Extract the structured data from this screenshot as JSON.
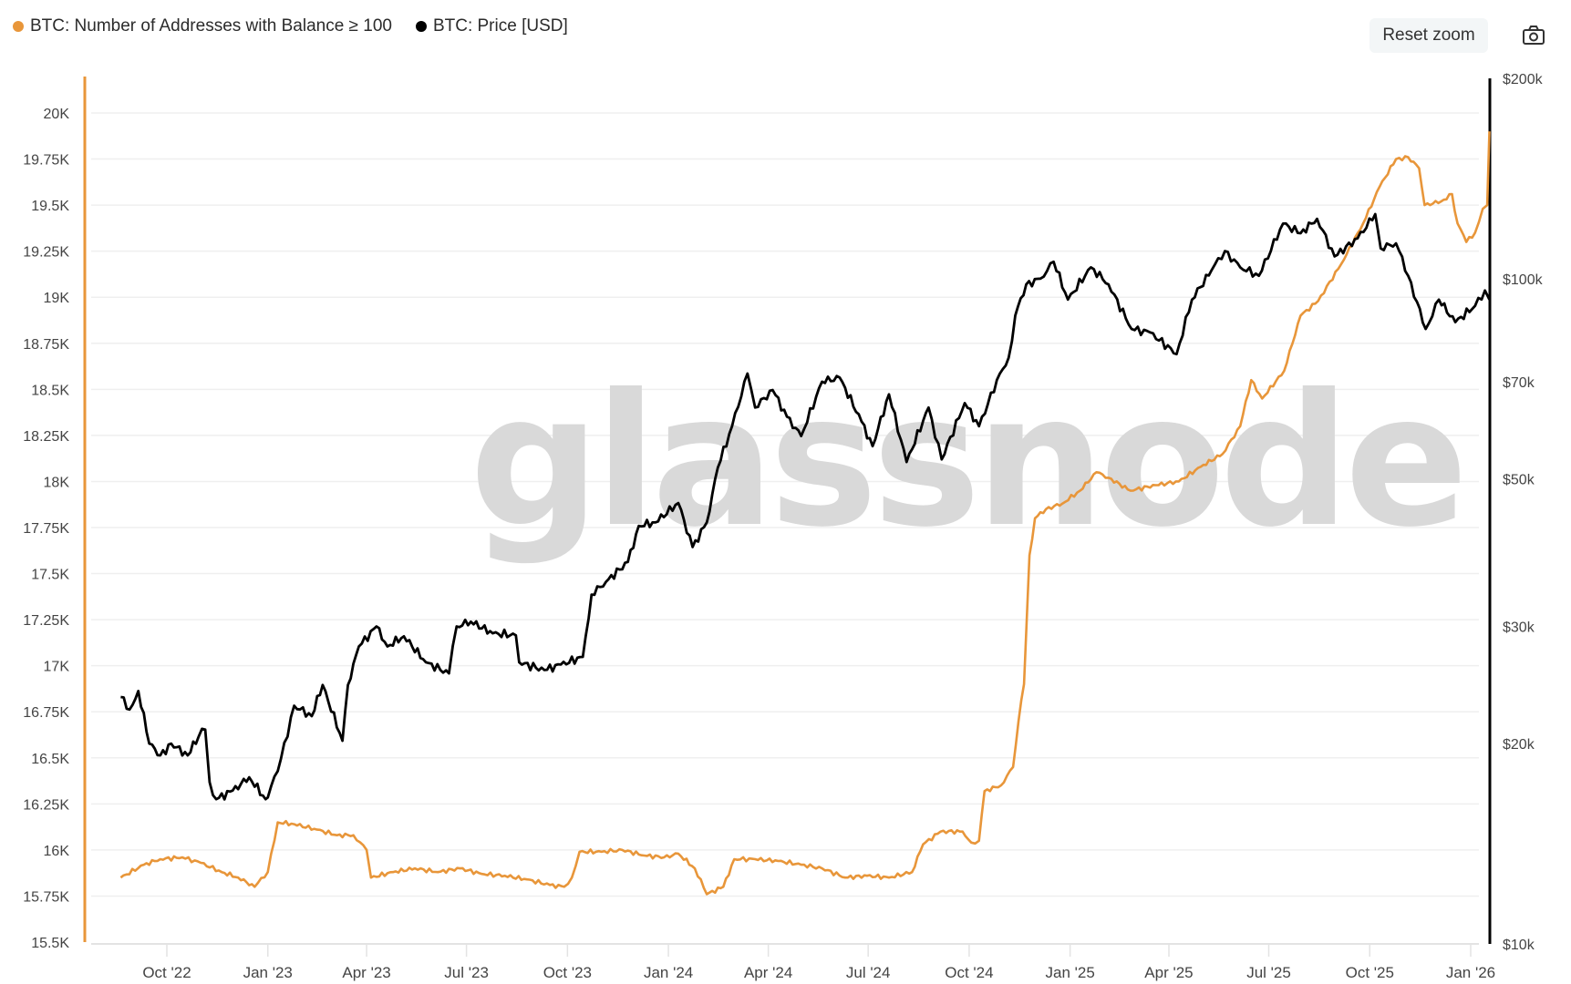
{
  "legend": [
    {
      "label": "BTC: Number of Addresses with Balance ≥ 100",
      "color": "#E8963A"
    },
    {
      "label": "BTC: Price [USD]",
      "color": "#000000"
    }
  ],
  "toolbar": {
    "reset_zoom_label": "Reset zoom",
    "screenshot_icon": "camera-icon"
  },
  "watermark": "glassnode",
  "chart_data": {
    "type": "line",
    "title": "",
    "xlabel": "",
    "ylabel": "",
    "y_left": {
      "label": "BTC: Number of Addresses with Balance ≥ 100",
      "range": [
        15500,
        20000
      ],
      "ticks": [
        "20K",
        "19.75K",
        "19.5K",
        "19.25K",
        "19K",
        "18.75K",
        "18.5K",
        "18.25K",
        "18K",
        "17.75K",
        "17.5K",
        "17.25K",
        "17K",
        "16.75K",
        "16.5K",
        "16.25K",
        "16K",
        "15.75K",
        "15.5K"
      ]
    },
    "y_right": {
      "label": "BTC: Price [USD]",
      "scale": "log",
      "range": [
        10000,
        200000
      ],
      "ticks": [
        {
          "label": "$200k",
          "value": 200000
        },
        {
          "label": "$100k",
          "value": 100000
        },
        {
          "label": "$70k",
          "value": 70000
        },
        {
          "label": "$50k",
          "value": 50000
        },
        {
          "label": "$30k",
          "value": 30000
        },
        {
          "label": "$20k",
          "value": 20000
        },
        {
          "label": "$10k",
          "value": 10000
        }
      ]
    },
    "x_ticks": [
      {
        "label": "Oct '22",
        "date": "2022-10-01"
      },
      {
        "label": "Jan '23",
        "date": "2023-01-01"
      },
      {
        "label": "Apr '23",
        "date": "2023-04-01"
      },
      {
        "label": "Jul '23",
        "date": "2023-07-01"
      },
      {
        "label": "Oct '23",
        "date": "2023-10-01"
      },
      {
        "label": "Jan '24",
        "date": "2024-01-01"
      },
      {
        "label": "Apr '24",
        "date": "2024-04-01"
      },
      {
        "label": "Jul '24",
        "date": "2024-07-01"
      },
      {
        "label": "Oct '24",
        "date": "2024-10-01"
      },
      {
        "label": "Jan '25",
        "date": "2025-01-01"
      },
      {
        "label": "Apr '25",
        "date": "2025-04-01"
      },
      {
        "label": "Jul '25",
        "date": "2025-07-01"
      },
      {
        "label": "Oct '25",
        "date": "2025-10-01"
      },
      {
        "label": "Jan '26",
        "date": "2026-01-01"
      }
    ],
    "grid": true,
    "legend_position": "top-left",
    "series": [
      {
        "name": "BTC: Number of Addresses with Balance ≥ 100",
        "color": "#E8963A",
        "axis": "left",
        "points": [
          [
            "2022-08-20",
            15850
          ],
          [
            "2022-09-10",
            15920
          ],
          [
            "2022-09-25",
            15950
          ],
          [
            "2022-10-15",
            15960
          ],
          [
            "2022-11-01",
            15930
          ],
          [
            "2022-11-20",
            15880
          ],
          [
            "2022-12-05",
            15850
          ],
          [
            "2022-12-20",
            15800
          ],
          [
            "2023-01-01",
            15880
          ],
          [
            "2023-01-10",
            16150
          ],
          [
            "2023-01-25",
            16140
          ],
          [
            "2023-02-15",
            16110
          ],
          [
            "2023-03-05",
            16080
          ],
          [
            "2023-03-20",
            16080
          ],
          [
            "2023-04-01",
            16000
          ],
          [
            "2023-04-05",
            15850
          ],
          [
            "2023-04-25",
            15880
          ],
          [
            "2023-05-15",
            15900
          ],
          [
            "2023-06-05",
            15880
          ],
          [
            "2023-06-25",
            15900
          ],
          [
            "2023-07-15",
            15870
          ],
          [
            "2023-08-05",
            15860
          ],
          [
            "2023-08-25",
            15840
          ],
          [
            "2023-09-15",
            15810
          ],
          [
            "2023-09-28",
            15800
          ],
          [
            "2023-10-05",
            15850
          ],
          [
            "2023-10-12",
            15990
          ],
          [
            "2023-11-01",
            15990
          ],
          [
            "2023-11-20",
            16000
          ],
          [
            "2023-12-10",
            15970
          ],
          [
            "2023-12-28",
            15960
          ],
          [
            "2024-01-10",
            15980
          ],
          [
            "2024-01-25",
            15900
          ],
          [
            "2024-02-05",
            15760
          ],
          [
            "2024-02-20",
            15800
          ],
          [
            "2024-03-01",
            15950
          ],
          [
            "2024-03-20",
            15950
          ],
          [
            "2024-04-10",
            15940
          ],
          [
            "2024-05-01",
            15920
          ],
          [
            "2024-05-20",
            15900
          ],
          [
            "2024-06-10",
            15850
          ],
          [
            "2024-06-30",
            15860
          ],
          [
            "2024-07-20",
            15850
          ],
          [
            "2024-08-10",
            15880
          ],
          [
            "2024-08-20",
            16030
          ],
          [
            "2024-09-05",
            16100
          ],
          [
            "2024-09-25",
            16100
          ],
          [
            "2024-10-03",
            16040
          ],
          [
            "2024-10-10",
            16050
          ],
          [
            "2024-10-15",
            16320
          ],
          [
            "2024-10-30",
            16350
          ],
          [
            "2024-11-10",
            16450
          ],
          [
            "2024-11-15",
            16700
          ],
          [
            "2024-11-20",
            16900
          ],
          [
            "2024-11-25",
            17600
          ],
          [
            "2024-11-30",
            17800
          ],
          [
            "2024-12-10",
            17850
          ],
          [
            "2024-12-25",
            17880
          ],
          [
            "2025-01-10",
            17950
          ],
          [
            "2025-01-25",
            18050
          ],
          [
            "2025-02-05",
            18020
          ],
          [
            "2025-02-25",
            17950
          ],
          [
            "2025-03-20",
            17980
          ],
          [
            "2025-04-10",
            18000
          ],
          [
            "2025-04-30",
            18080
          ],
          [
            "2025-05-20",
            18150
          ],
          [
            "2025-06-05",
            18300
          ],
          [
            "2025-06-15",
            18550
          ],
          [
            "2025-06-25",
            18450
          ],
          [
            "2025-07-15",
            18600
          ],
          [
            "2025-07-30",
            18900
          ],
          [
            "2025-08-15",
            18980
          ],
          [
            "2025-09-05",
            19180
          ],
          [
            "2025-09-25",
            19400
          ],
          [
            "2025-10-10",
            19600
          ],
          [
            "2025-10-25",
            19750
          ],
          [
            "2025-11-05",
            19760
          ],
          [
            "2025-11-15",
            19700
          ],
          [
            "2025-11-20",
            19500
          ],
          [
            "2025-12-05",
            19520
          ],
          [
            "2025-12-15",
            19560
          ],
          [
            "2025-12-20",
            19400
          ],
          [
            "2025-12-28",
            19300
          ],
          [
            "2026-01-05",
            19350
          ],
          [
            "2026-01-12",
            19480
          ],
          [
            "2026-01-16",
            19500
          ],
          [
            "2026-01-18",
            19900
          ]
        ]
      },
      {
        "name": "BTC: Price [USD]",
        "color": "#000000",
        "axis": "right",
        "points": [
          [
            "2022-08-20",
            23500
          ],
          [
            "2022-08-28",
            22500
          ],
          [
            "2022-09-05",
            24000
          ],
          [
            "2022-09-15",
            20000
          ],
          [
            "2022-09-25",
            19200
          ],
          [
            "2022-10-05",
            20000
          ],
          [
            "2022-10-20",
            19200
          ],
          [
            "2022-10-30",
            20500
          ],
          [
            "2022-11-05",
            21000
          ],
          [
            "2022-11-09",
            17500
          ],
          [
            "2022-11-15",
            16500
          ],
          [
            "2022-11-30",
            17000
          ],
          [
            "2022-12-15",
            17800
          ],
          [
            "2022-12-30",
            16500
          ],
          [
            "2023-01-01",
            16600
          ],
          [
            "2023-01-13",
            19000
          ],
          [
            "2023-01-25",
            22800
          ],
          [
            "2023-02-10",
            22000
          ],
          [
            "2023-02-20",
            24500
          ],
          [
            "2023-03-10",
            20200
          ],
          [
            "2023-03-15",
            24500
          ],
          [
            "2023-03-25",
            28000
          ],
          [
            "2023-04-10",
            30000
          ],
          [
            "2023-04-20",
            28000
          ],
          [
            "2023-05-05",
            29000
          ],
          [
            "2023-05-25",
            26500
          ],
          [
            "2023-06-15",
            25500
          ],
          [
            "2023-06-22",
            30000
          ],
          [
            "2023-07-05",
            30500
          ],
          [
            "2023-07-25",
            29300
          ],
          [
            "2023-08-15",
            29100
          ],
          [
            "2023-08-18",
            26500
          ],
          [
            "2023-09-10",
            25800
          ],
          [
            "2023-09-25",
            26300
          ],
          [
            "2023-10-15",
            27000
          ],
          [
            "2023-10-23",
            33500
          ],
          [
            "2023-11-05",
            35000
          ],
          [
            "2023-11-25",
            37500
          ],
          [
            "2023-12-05",
            42500
          ],
          [
            "2023-12-20",
            43000
          ],
          [
            "2024-01-10",
            46000
          ],
          [
            "2024-01-23",
            39500
          ],
          [
            "2024-02-05",
            43000
          ],
          [
            "2024-02-15",
            52000
          ],
          [
            "2024-02-28",
            60000
          ],
          [
            "2024-03-13",
            72000
          ],
          [
            "2024-03-20",
            64000
          ],
          [
            "2024-04-05",
            68000
          ],
          [
            "2024-04-18",
            62000
          ],
          [
            "2024-05-01",
            58000
          ],
          [
            "2024-05-20",
            70000
          ],
          [
            "2024-06-05",
            71000
          ],
          [
            "2024-06-25",
            61000
          ],
          [
            "2024-07-05",
            56000
          ],
          [
            "2024-07-20",
            67000
          ],
          [
            "2024-08-05",
            53000
          ],
          [
            "2024-08-25",
            64000
          ],
          [
            "2024-09-06",
            53500
          ],
          [
            "2024-09-27",
            65000
          ],
          [
            "2024-10-10",
            60000
          ],
          [
            "2024-10-29",
            72000
          ],
          [
            "2024-11-06",
            76000
          ],
          [
            "2024-11-12",
            88000
          ],
          [
            "2024-11-22",
            98000
          ],
          [
            "2024-12-05",
            100000
          ],
          [
            "2024-12-17",
            106000
          ],
          [
            "2024-12-30",
            93000
          ],
          [
            "2025-01-20",
            104000
          ],
          [
            "2025-02-05",
            98000
          ],
          [
            "2025-02-26",
            84000
          ],
          [
            "2025-03-15",
            83000
          ],
          [
            "2025-04-08",
            77000
          ],
          [
            "2025-04-22",
            93000
          ],
          [
            "2025-05-10",
            103000
          ],
          [
            "2025-05-22",
            110000
          ],
          [
            "2025-06-05",
            104000
          ],
          [
            "2025-06-22",
            101000
          ],
          [
            "2025-07-14",
            121000
          ],
          [
            "2025-07-30",
            117000
          ],
          [
            "2025-08-14",
            123000
          ],
          [
            "2025-08-30",
            108000
          ],
          [
            "2025-09-20",
            115000
          ],
          [
            "2025-10-06",
            125000
          ],
          [
            "2025-10-11",
            111000
          ],
          [
            "2025-10-25",
            113000
          ],
          [
            "2025-11-05",
            101000
          ],
          [
            "2025-11-21",
            84000
          ],
          [
            "2025-12-03",
            93000
          ],
          [
            "2025-12-18",
            86000
          ],
          [
            "2026-01-05",
            91000
          ],
          [
            "2026-01-14",
            96000
          ],
          [
            "2026-01-18",
            93000
          ]
        ]
      }
    ]
  }
}
